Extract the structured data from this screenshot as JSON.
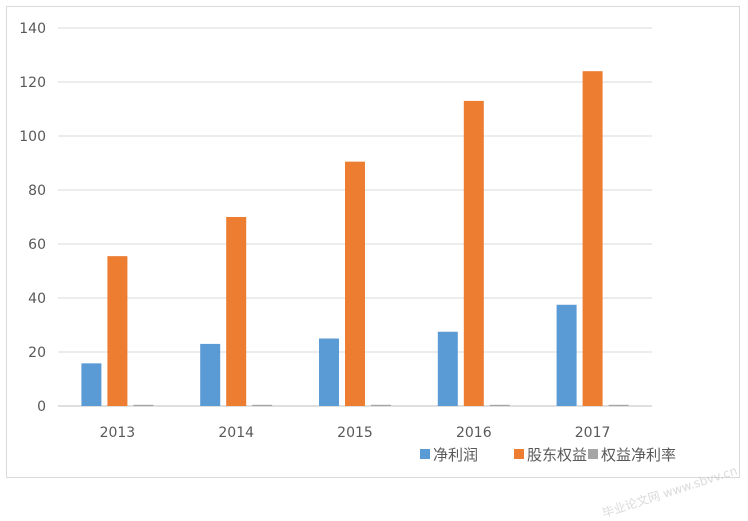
{
  "chart_data": {
    "type": "bar",
    "categories": [
      "2013",
      "2014",
      "2015",
      "2016",
      "2017"
    ],
    "series": [
      {
        "name": "净利润",
        "values": [
          15.8,
          23.0,
          25.0,
          27.5,
          37.5
        ]
      },
      {
        "name": "股东权益",
        "values": [
          55.5,
          70.0,
          90.5,
          113.0,
          124.0
        ]
      },
      {
        "name": "权益净利率",
        "values": [
          0.28,
          0.33,
          0.28,
          0.24,
          0.3
        ]
      }
    ],
    "title": "",
    "xlabel": "",
    "ylabel": "",
    "ylim": [
      0,
      140
    ],
    "yticks": [
      "0",
      "20",
      "40",
      "60",
      "80",
      "100",
      "120",
      "140"
    ],
    "grid": true,
    "legend": "bottom-right"
  },
  "colors": {
    "series": [
      "#5b9bd5",
      "#ed7d31",
      "#a5a5a5"
    ],
    "grid": "#d9d9d9",
    "axis": "#bfbfbf"
  },
  "watermark": "毕业论文网 www.sbvv.cn"
}
